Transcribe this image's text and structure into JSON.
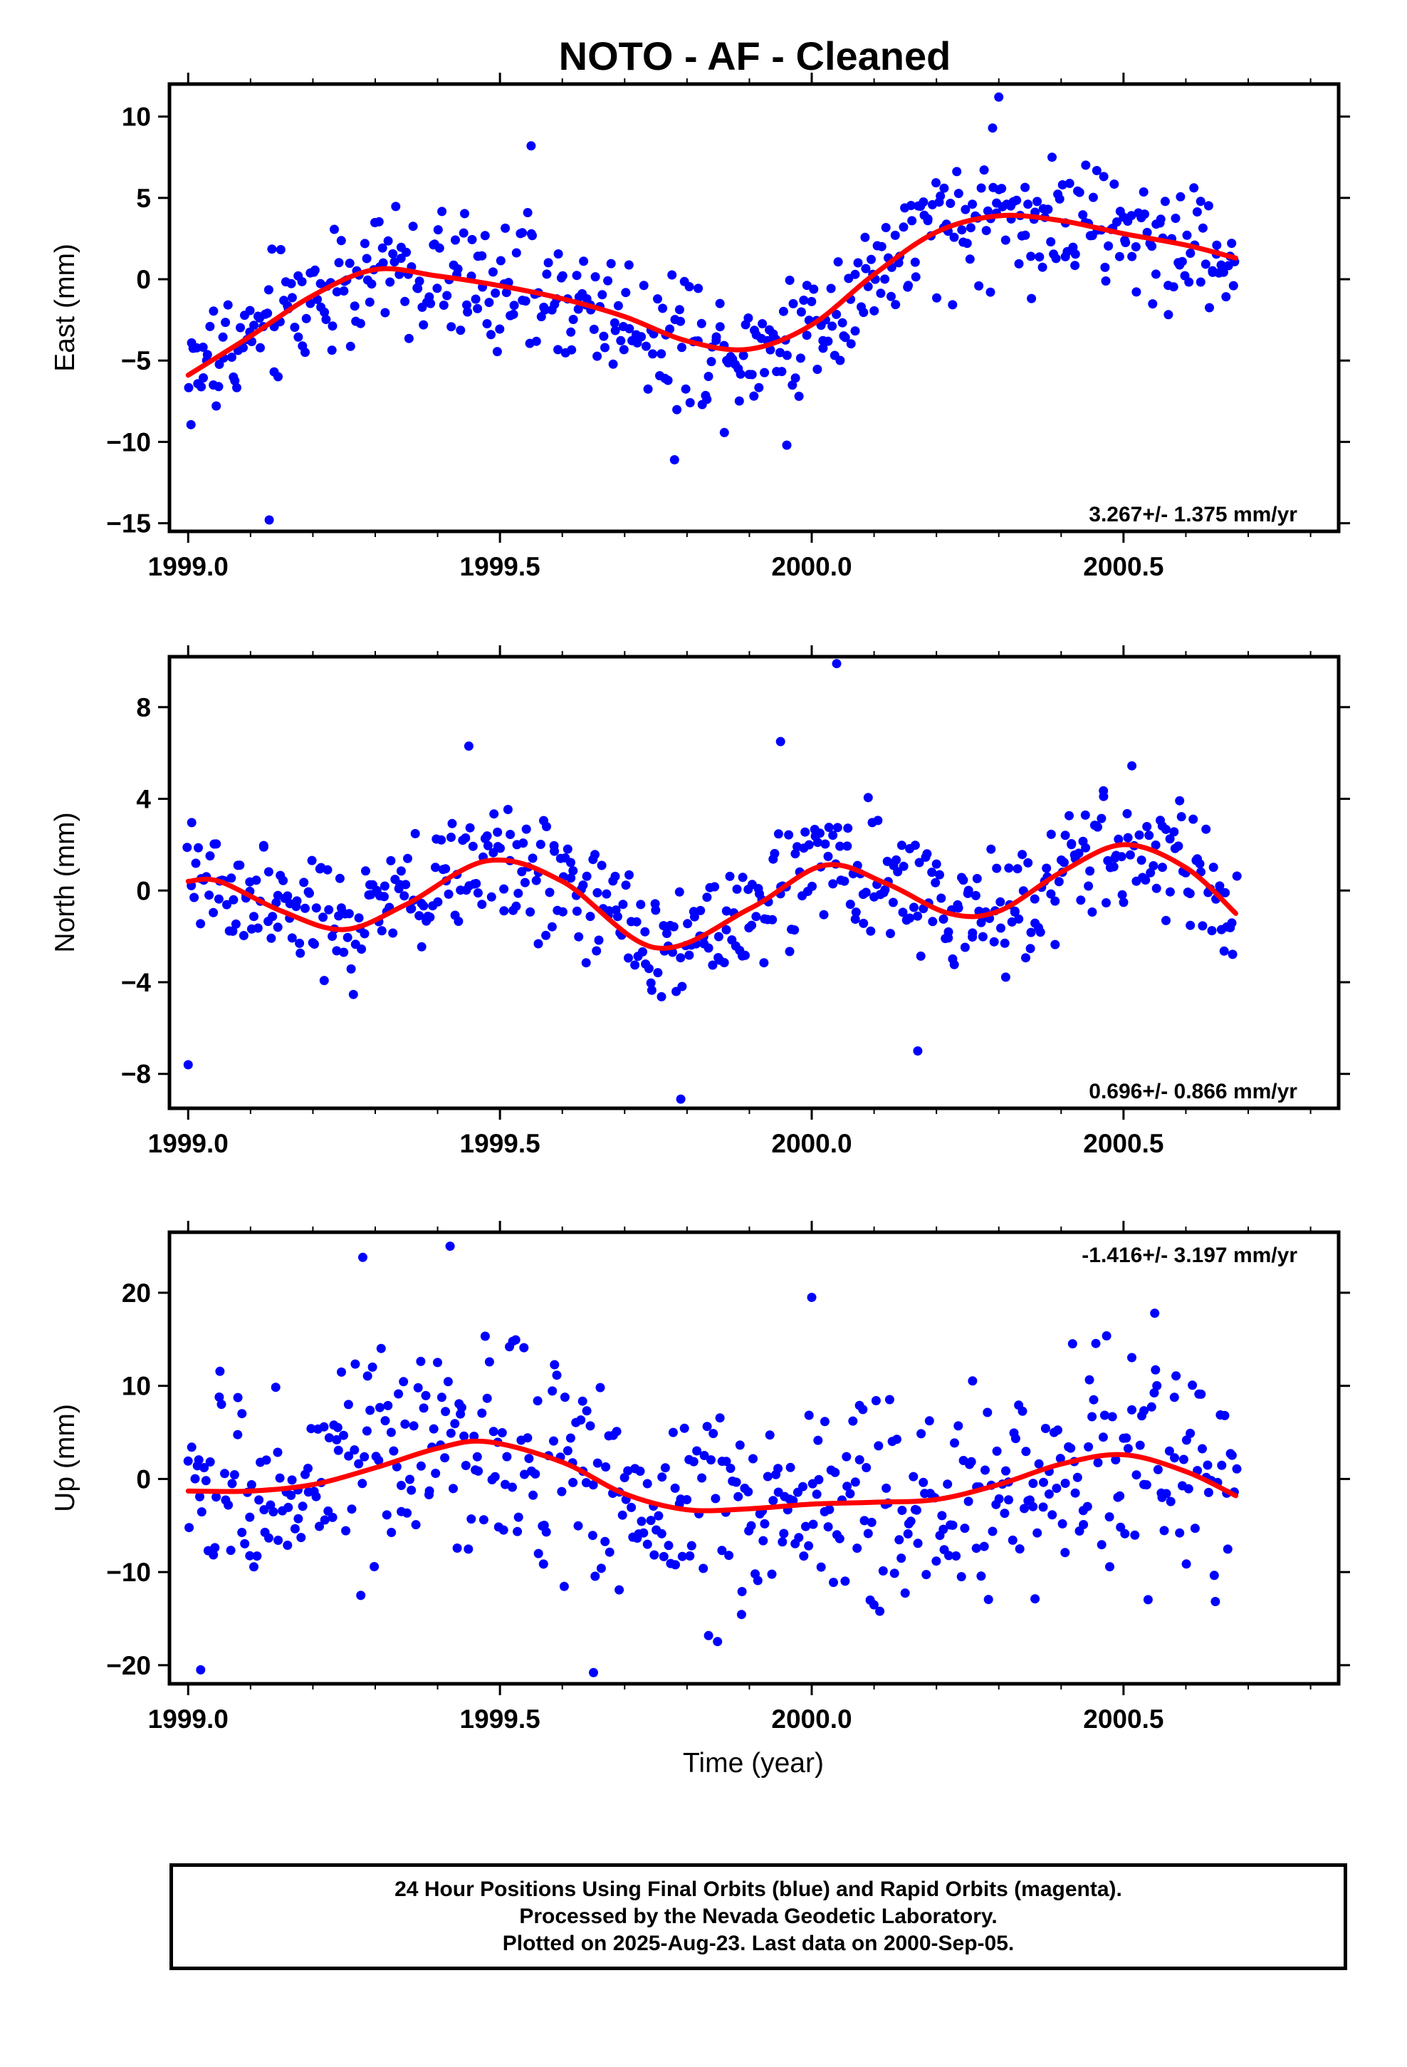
{
  "title": "NOTO  - AF - Cleaned",
  "xlabel": "Time (year)",
  "footer": {
    "line1": "24 Hour Positions Using Final Orbits (blue) and Rapid Orbits (magenta).",
    "line2": "Processed by the Nevada Geodetic Laboratory.",
    "line3": "Plotted on 2025-Aug-23. Last data on 2000-Sep-05."
  },
  "colors": {
    "points": "#0000ff",
    "fit": "#ff0000",
    "axes": "#000000"
  },
  "chart_data": [
    {
      "type": "scatter",
      "ylabel": "East (mm)",
      "xlim": [
        1998.97,
        2000.845
      ],
      "ylim": [
        -15.5,
        12
      ],
      "xticks": [
        1999.0,
        1999.5,
        2000.0,
        2000.5
      ],
      "xtick_labels": [
        "1999.0",
        "1999.5",
        "2000.0",
        "2000.5"
      ],
      "yticks": [
        10,
        5,
        0,
        -5,
        -10,
        -15
      ],
      "ytick_labels": [
        "10",
        "5",
        "0",
        "−5",
        "−10",
        "−15"
      ],
      "rate": "3.267+/- 1.375 mm/yr",
      "rate_pos": "bottom-right",
      "series": [
        {
          "kind": "points",
          "amp": 2.5,
          "outliers": [
            [
              1999.13,
              -14.8
            ],
            [
              2000.3,
              11.2
            ],
            [
              1999.55,
              8.2
            ],
            [
              1999.78,
              -11.1
            ],
            [
              1999.96,
              -10.2
            ],
            [
              2000.29,
              9.3
            ]
          ]
        },
        {
          "kind": "fit",
          "x": [
            1999.0,
            1999.1,
            1999.2,
            1999.3,
            1999.4,
            1999.5,
            1999.6,
            1999.7,
            1999.8,
            1999.9,
            2000.0,
            2000.1,
            2000.2,
            2000.3,
            2000.4,
            2000.5,
            2000.6,
            2000.68
          ],
          "y": [
            -5.9,
            -3.5,
            -1.0,
            0.6,
            0.2,
            -0.4,
            -1.2,
            -2.3,
            -3.8,
            -4.3,
            -2.8,
            0.3,
            2.9,
            3.9,
            3.6,
            2.8,
            2.1,
            1.3
          ]
        }
      ]
    },
    {
      "type": "scatter",
      "ylabel": "North (mm)",
      "xlim": [
        1998.97,
        2000.845
      ],
      "ylim": [
        -9.5,
        10.2
      ],
      "xticks": [
        1999.0,
        1999.5,
        2000.0,
        2000.5
      ],
      "xtick_labels": [
        "1999.0",
        "1999.5",
        "2000.0",
        "2000.5"
      ],
      "yticks": [
        8,
        4,
        0,
        -4,
        -8
      ],
      "ytick_labels": [
        "8",
        "4",
        "0",
        "−4",
        "−8"
      ],
      "rate": "0.696+/- 0.866 mm/yr",
      "rate_pos": "bottom-right",
      "series": [
        {
          "kind": "points",
          "amp": 1.7,
          "outliers": [
            [
              2000.04,
              9.9
            ],
            [
              1999.79,
              -9.1
            ],
            [
              1999.0,
              -7.6
            ],
            [
              1999.45,
              6.3
            ],
            [
              2000.17,
              -7.0
            ],
            [
              1999.95,
              6.5
            ]
          ]
        },
        {
          "kind": "fit",
          "x": [
            1999.0,
            1999.05,
            1999.15,
            1999.25,
            1999.35,
            1999.48,
            1999.6,
            1999.75,
            1999.9,
            2000.02,
            2000.12,
            2000.22,
            2000.3,
            2000.4,
            2000.5,
            2000.6,
            2000.68
          ],
          "y": [
            0.4,
            0.4,
            -0.9,
            -1.7,
            -0.6,
            1.3,
            0.4,
            -2.5,
            -0.8,
            1.1,
            0.3,
            -1.0,
            -0.9,
            0.8,
            2.0,
            1.0,
            -1.0
          ]
        }
      ]
    },
    {
      "type": "scatter",
      "ylabel": "Up (mm)",
      "xlim": [
        1998.97,
        2000.845
      ],
      "ylim": [
        -22,
        26.5
      ],
      "xticks": [
        1999.0,
        1999.5,
        2000.0,
        2000.5
      ],
      "xtick_labels": [
        "1999.0",
        "1999.5",
        "2000.0",
        "2000.5"
      ],
      "yticks": [
        20,
        10,
        0,
        -10,
        -20
      ],
      "ytick_labels": [
        "20",
        "10",
        "0",
        "−10",
        "−20"
      ],
      "rate": "-1.416+/- 3.197 mm/yr",
      "rate_pos": "top-right",
      "series": [
        {
          "kind": "points",
          "amp": 7.0,
          "outliers": [
            [
              1999.42,
              25.0
            ],
            [
              1999.28,
              23.8
            ],
            [
              2000.0,
              19.5
            ],
            [
              1999.65,
              -20.8
            ],
            [
              1999.02,
              -20.5
            ],
            [
              2000.55,
              17.8
            ]
          ]
        },
        {
          "kind": "fit",
          "x": [
            1999.0,
            1999.1,
            1999.2,
            1999.3,
            1999.4,
            1999.48,
            1999.6,
            1999.7,
            1999.8,
            1999.9,
            2000.0,
            2000.1,
            2000.2,
            2000.3,
            2000.4,
            2000.5,
            2000.6,
            2000.68
          ],
          "y": [
            -1.3,
            -1.3,
            -0.6,
            1.2,
            3.3,
            4.0,
            1.8,
            -1.6,
            -3.3,
            -3.2,
            -2.7,
            -2.5,
            -2.2,
            -0.6,
            1.6,
            2.6,
            0.8,
            -1.8
          ]
        }
      ]
    }
  ]
}
